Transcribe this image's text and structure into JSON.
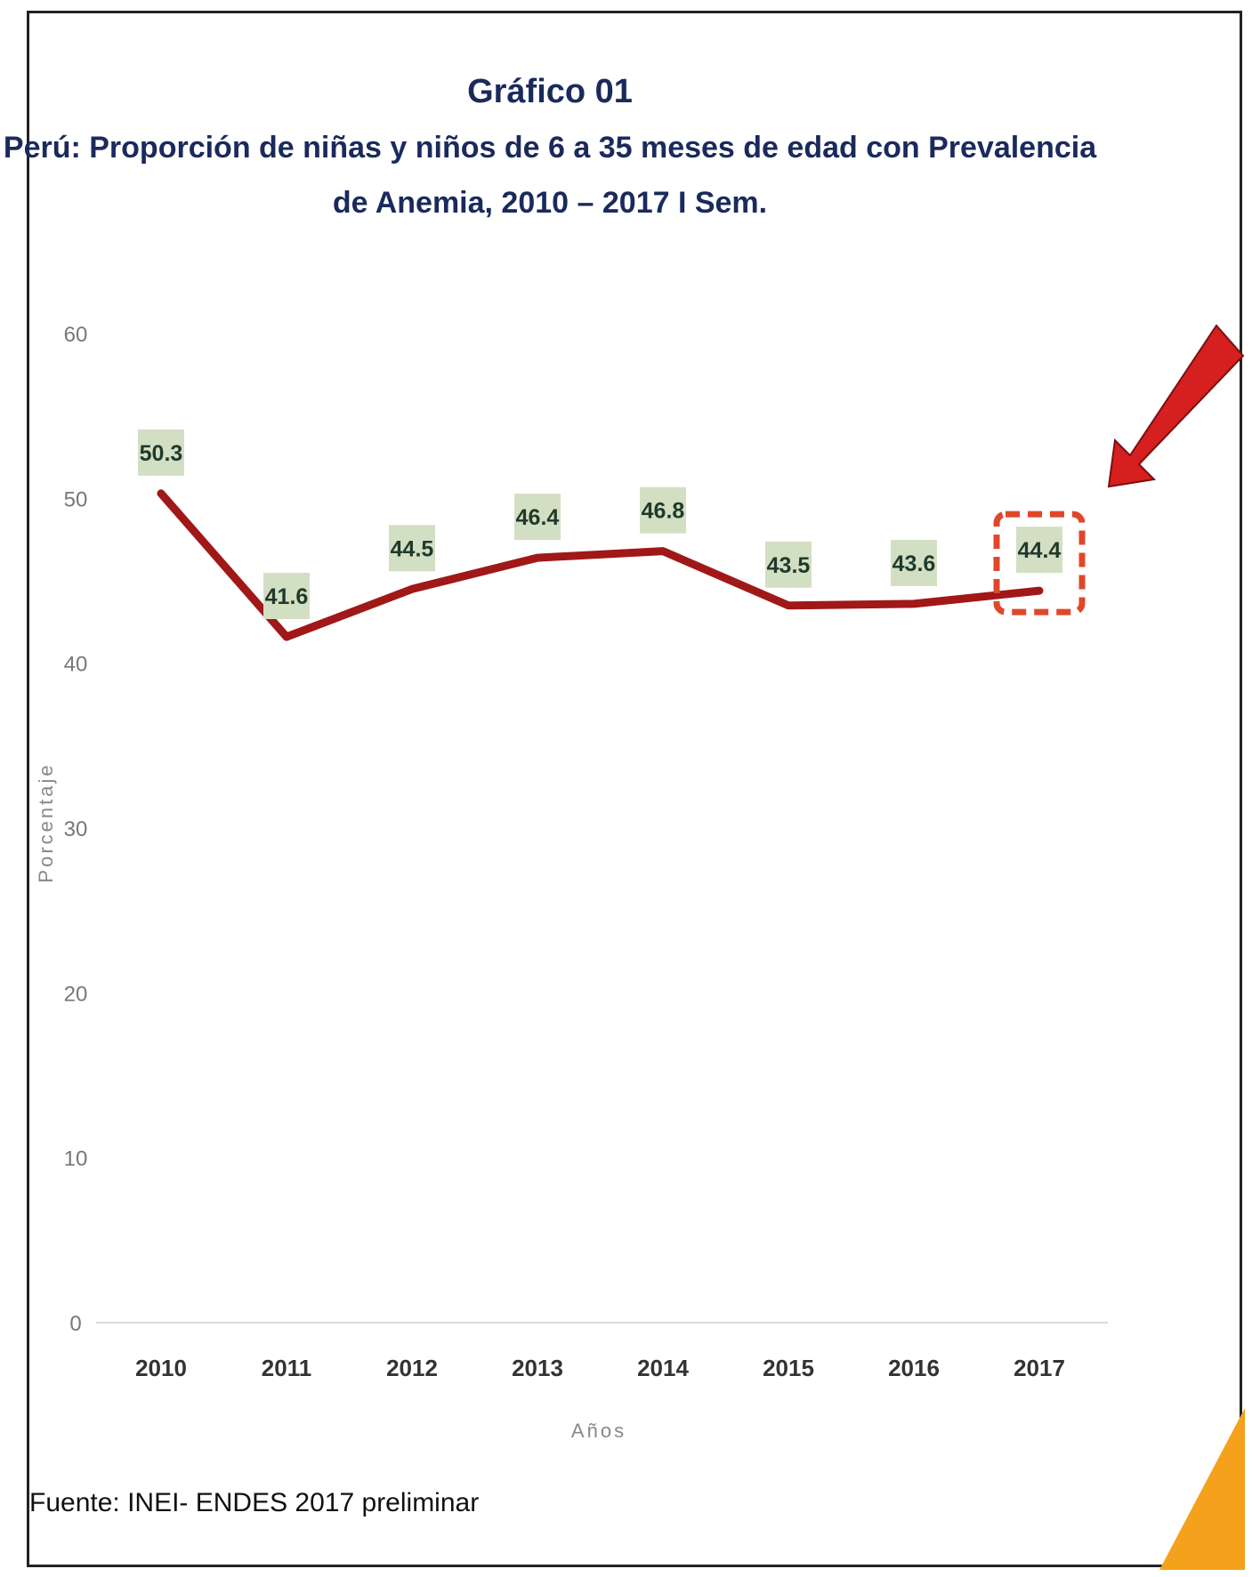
{
  "colors": {
    "title": "#1a2a5c",
    "line": "#a01818",
    "label_bg": "#d3dfc3",
    "highlight_box": "#e0472a",
    "arrow": "#d61f1f",
    "corner_accent": "#f4a21c"
  },
  "chart_data": {
    "type": "line",
    "title": "Gráfico 01",
    "subtitle_line1": "Perú: Proporción de niñas y niños de 6 a 35 meses de edad con Prevalencia",
    "subtitle_line2": "de Anemia, 2010 – 2017 I Sem.",
    "xlabel": "Años",
    "ylabel": "Porcentaje",
    "categories": [
      "2010",
      "2011",
      "2012",
      "2013",
      "2014",
      "2015",
      "2016",
      "2017"
    ],
    "series": [
      {
        "values": [
          50.3,
          41.6,
          44.5,
          46.4,
          46.8,
          43.5,
          43.6,
          44.4
        ],
        "labels": [
          "50.3",
          "41.6",
          "44.5",
          "46.4",
          "46.8",
          "43.5",
          "43.6",
          "44.4"
        ]
      }
    ],
    "ylim": [
      0,
      60
    ],
    "yticks": [
      "0",
      "10",
      "20",
      "30",
      "40",
      "50",
      "60"
    ],
    "grid": false,
    "highlight_category": "2017",
    "source": "Fuente: INEI- ENDES 2017 preliminar"
  }
}
